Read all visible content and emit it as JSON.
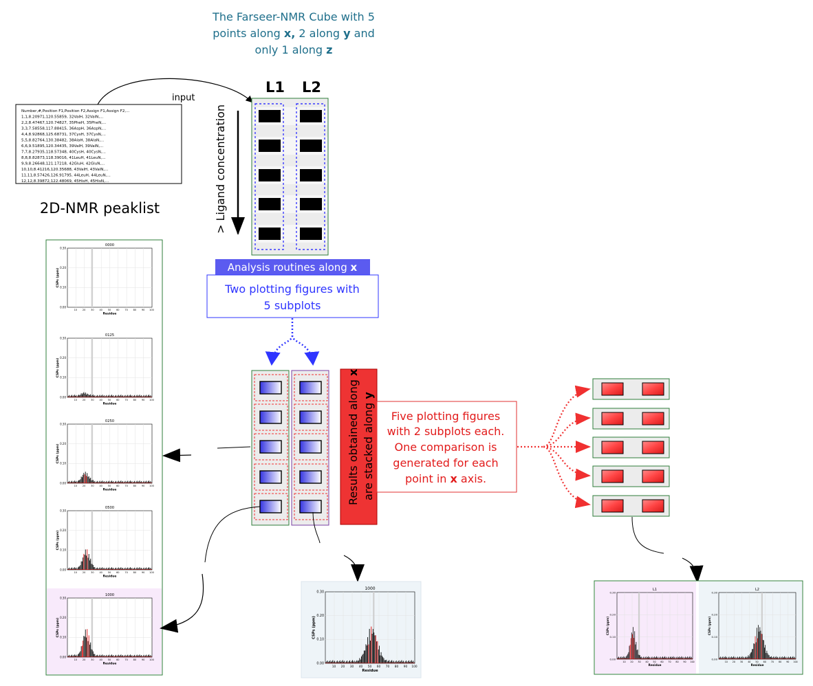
{
  "cube_caption": {
    "line1": "The Farseer-NMR Cube with 5",
    "line2_a": "points along ",
    "line2_x": "x,",
    "line2_b": " 2 along ",
    "line2_y": "y",
    "line2_c": " and",
    "line3_a": "only 1 along ",
    "line3_z": "z"
  },
  "input_label": "input",
  "peaklist": {
    "title": "2D-NMR peaklist",
    "lines": [
      "Number,#,Position F1,Position F2,Assign F1,Assign F2,...",
      "1,1,8.20971,120.55859, 32ValH, 32ValN,...",
      "2,2,8.47467,120.74827, 35PheH, 35PheN,...",
      "3,3,7.58558,117.88415, 36AspH, 36AspN,...",
      "4,4,8.92868,125.68731, 37CysH, 37CysN,...",
      "5,5,8.82764,130.38482, 38AlaH, 38AlaN,...",
      "6,6,9.51895,120.34435, 39ValH, 39ValN,...",
      "7,7,8.27935,118.57348, 40CysH, 40CysN,...",
      "8,8,8.82873,118.39016, 41LeuH, 41LeuN,...",
      "9,9,8.26648,121.17218, 42GluH, 42GluN,...",
      "10,10,8.41216,120.35688, 43ValH, 43ValN,...",
      "11,11,8.57426,126.91795, 44LeuH, 44LeuN,...",
      "12,12,8.39872,122.48069, 45HisH, 45HisN,..."
    ]
  },
  "cube": {
    "columns": [
      "L1",
      "L2"
    ],
    "axis_label": "> Ligand concentration"
  },
  "analysis_x": {
    "header_a": "Analysis routines along ",
    "header_x": "x",
    "body_line1": "Two plotting figures with",
    "body_line2": "5 subplots"
  },
  "stacked_label": {
    "line1_a": "Results obtained along ",
    "line1_x": "x",
    "line2_a": "are stacked along ",
    "line2_y": "y"
  },
  "comparison_box": {
    "line1": "Five plotting figures",
    "line2": "with 2 subplots each.",
    "line3": "One comparison is",
    "line4": "generated for each",
    "line5_a": "point in ",
    "line5_x": "x",
    "line5_b": " axis."
  },
  "plot_common": {
    "ylabel": "CSPs (ppm)",
    "xlabel": "Residue",
    "yticks": [
      "0.30",
      "0.20",
      "0.10",
      "0.00"
    ],
    "xticks": [
      "10",
      "20",
      "30",
      "40",
      "50",
      "60",
      "70",
      "80",
      "90",
      "100"
    ]
  },
  "stack_plots": [
    {
      "title": "0000"
    },
    {
      "title": "0125"
    },
    {
      "title": "0250"
    },
    {
      "title": "0500"
    },
    {
      "title": "1000"
    }
  ],
  "single_plot": {
    "title": "1000"
  },
  "comparison_plots": [
    {
      "title": "L1"
    },
    {
      "title": "L2"
    }
  ],
  "colors": {
    "green_border": "#2e7d3a",
    "purple_border": "#7a3fa3",
    "blue_dash": "#3a3aff",
    "red": "#ee3333",
    "teal_text": "#1f6f8b",
    "header_blue": "#5b5bf0"
  }
}
